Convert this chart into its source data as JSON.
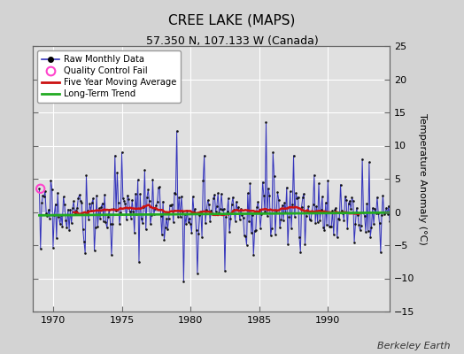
{
  "title": "CREE LAKE (MAPS)",
  "subtitle": "57.350 N, 107.133 W (Canada)",
  "ylabel": "Temperature Anomaly (°C)",
  "credit": "Berkeley Earth",
  "ylim": [
    -15,
    25
  ],
  "yticks": [
    -15,
    -10,
    -5,
    0,
    5,
    10,
    15,
    20,
    25
  ],
  "xlim": [
    1968.5,
    1994.5
  ],
  "xticks": [
    1970,
    1975,
    1980,
    1985,
    1990
  ],
  "start_year": 1969.0,
  "n_months": 312,
  "bg_color": "#d3d3d3",
  "plot_bg_color": "#e0e0e0",
  "line_color": "#3333bb",
  "line_fill_color": "#9999dd",
  "dot_color": "#111111",
  "moving_avg_color": "#cc1111",
  "trend_color": "#22aa22",
  "qc_fail_color": "#ff44cc",
  "qc_fail_x": 1969.08,
  "qc_fail_y": 3.5,
  "trend_slope": 0.016,
  "trend_intercept": -0.3,
  "title_fontsize": 11,
  "subtitle_fontsize": 9,
  "tick_labelsize": 8,
  "ylabel_fontsize": 8,
  "credit_fontsize": 8
}
